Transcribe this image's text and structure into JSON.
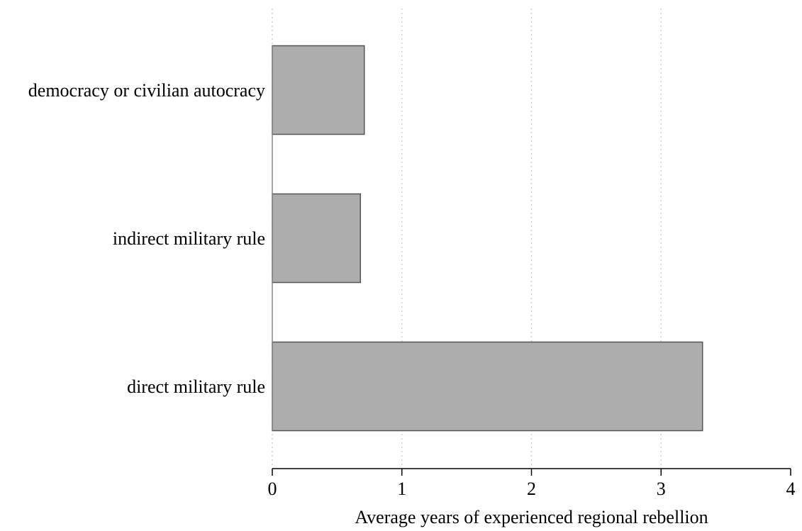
{
  "chart_data": {
    "type": "bar",
    "orientation": "horizontal",
    "categories": [
      "democracy or civilian autocracy",
      "indirect military rule",
      "direct military rule"
    ],
    "values": [
      0.71,
      0.68,
      3.32
    ],
    "title": "",
    "xlabel": "Average years of experienced regional rebellion",
    "ylabel": "",
    "xlim": [
      0,
      4
    ],
    "xticks": [
      "0",
      "1",
      "2",
      "3",
      "4"
    ],
    "grid": "vertical dotted",
    "legend": "none",
    "colors": {
      "bar_fill": "#adadad",
      "bar_stroke": "#555555",
      "axis": "#000000",
      "grid": "#c8c8c8"
    }
  }
}
